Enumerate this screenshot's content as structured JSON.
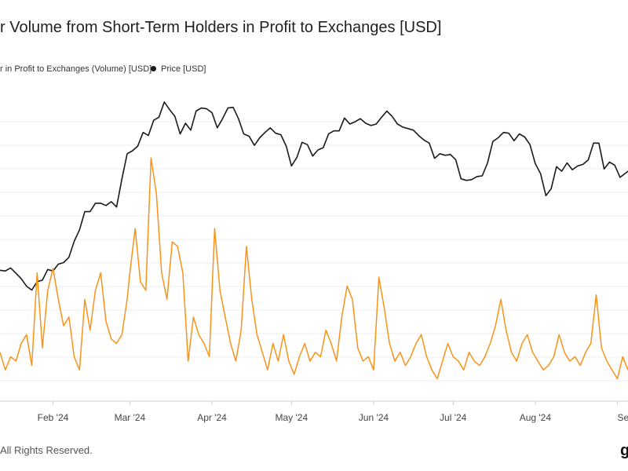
{
  "chart_data": {
    "type": "line",
    "title": "r Volume from Short-Term Holders in Profit to Exchanges [USD]",
    "legend": [
      {
        "name": "r in Profit to Exchanges (Volume) [USD]",
        "color": "#f7931a"
      },
      {
        "name": "Price [USD]",
        "color": "#1a1a1a"
      }
    ],
    "x_ticks": [
      "Feb '24",
      "Mar '24",
      "Apr '24",
      "May '24",
      "Jun '24",
      "Jul '24",
      "Aug '24",
      "Sep"
    ],
    "x_range": [
      "2024-01-12",
      "2024-09-05"
    ],
    "grid": "horizontal",
    "legend_position": "top-left",
    "series": [
      {
        "name": "Price [USD]",
        "color": "#1a1a1a",
        "points": [
          [
            "2024-01-12",
            295
          ],
          [
            "2024-01-14",
            294
          ],
          [
            "2024-01-16",
            298
          ],
          [
            "2024-01-18",
            291
          ],
          [
            "2024-01-20",
            284
          ],
          [
            "2024-01-22",
            274
          ],
          [
            "2024-01-24",
            269
          ],
          [
            "2024-01-26",
            280
          ],
          [
            "2024-01-28",
            282
          ],
          [
            "2024-01-30",
            296
          ],
          [
            "2024-02-01",
            294
          ],
          [
            "2024-02-03",
            303
          ],
          [
            "2024-02-05",
            305
          ],
          [
            "2024-02-07",
            312
          ],
          [
            "2024-02-09",
            333
          ],
          [
            "2024-02-11",
            348
          ],
          [
            "2024-02-13",
            372
          ],
          [
            "2024-02-15",
            372
          ],
          [
            "2024-02-17",
            383
          ],
          [
            "2024-02-19",
            383
          ],
          [
            "2024-02-21",
            380
          ],
          [
            "2024-02-23",
            385
          ],
          [
            "2024-02-25",
            378
          ],
          [
            "2024-02-27",
            415
          ],
          [
            "2024-02-29",
            448
          ],
          [
            "2024-03-02",
            452
          ],
          [
            "2024-03-04",
            458
          ],
          [
            "2024-03-06",
            476
          ],
          [
            "2024-03-08",
            472
          ],
          [
            "2024-03-10",
            492
          ],
          [
            "2024-03-12",
            496
          ],
          [
            "2024-03-14",
            516
          ],
          [
            "2024-03-16",
            506
          ],
          [
            "2024-03-18",
            497
          ],
          [
            "2024-03-20",
            474
          ],
          [
            "2024-03-22",
            488
          ],
          [
            "2024-03-24",
            479
          ],
          [
            "2024-03-26",
            504
          ],
          [
            "2024-03-28",
            508
          ],
          [
            "2024-03-30",
            507
          ],
          [
            "2024-04-01",
            502
          ],
          [
            "2024-04-03",
            482
          ],
          [
            "2024-04-05",
            494
          ],
          [
            "2024-04-07",
            508
          ],
          [
            "2024-04-09",
            509
          ],
          [
            "2024-04-11",
            494
          ],
          [
            "2024-04-13",
            474
          ],
          [
            "2024-04-15",
            471
          ],
          [
            "2024-04-17",
            459
          ],
          [
            "2024-04-19",
            469
          ],
          [
            "2024-04-21",
            476
          ],
          [
            "2024-04-23",
            482
          ],
          [
            "2024-04-25",
            475
          ],
          [
            "2024-04-27",
            473
          ],
          [
            "2024-04-29",
            458
          ],
          [
            "2024-05-01",
            432
          ],
          [
            "2024-05-03",
            443
          ],
          [
            "2024-05-05",
            463
          ],
          [
            "2024-05-07",
            460
          ],
          [
            "2024-05-09",
            445
          ],
          [
            "2024-05-11",
            453
          ],
          [
            "2024-05-13",
            456
          ],
          [
            "2024-05-15",
            474
          ],
          [
            "2024-05-17",
            478
          ],
          [
            "2024-05-19",
            478
          ],
          [
            "2024-05-21",
            495
          ],
          [
            "2024-05-23",
            487
          ],
          [
            "2024-05-25",
            490
          ],
          [
            "2024-05-27",
            494
          ],
          [
            "2024-05-29",
            488
          ],
          [
            "2024-05-31",
            485
          ],
          [
            "2024-06-02",
            487
          ],
          [
            "2024-06-04",
            496
          ],
          [
            "2024-06-06",
            504
          ],
          [
            "2024-06-08",
            497
          ],
          [
            "2024-06-10",
            487
          ],
          [
            "2024-06-12",
            483
          ],
          [
            "2024-06-14",
            481
          ],
          [
            "2024-06-16",
            479
          ],
          [
            "2024-06-18",
            472
          ],
          [
            "2024-06-20",
            466
          ],
          [
            "2024-06-22",
            462
          ],
          [
            "2024-06-24",
            442
          ],
          [
            "2024-06-26",
            448
          ],
          [
            "2024-06-28",
            446
          ],
          [
            "2024-06-30",
            447
          ],
          [
            "2024-07-02",
            440
          ],
          [
            "2024-07-04",
            415
          ],
          [
            "2024-07-06",
            413
          ],
          [
            "2024-07-08",
            414
          ],
          [
            "2024-07-10",
            418
          ],
          [
            "2024-07-12",
            419
          ],
          [
            "2024-07-14",
            436
          ],
          [
            "2024-07-16",
            464
          ],
          [
            "2024-07-18",
            469
          ],
          [
            "2024-07-20",
            476
          ],
          [
            "2024-07-22",
            475
          ],
          [
            "2024-07-24",
            465
          ],
          [
            "2024-07-26",
            474
          ],
          [
            "2024-07-28",
            470
          ],
          [
            "2024-07-30",
            460
          ],
          [
            "2024-08-01",
            435
          ],
          [
            "2024-08-03",
            422
          ],
          [
            "2024-08-05",
            393
          ],
          [
            "2024-08-07",
            402
          ],
          [
            "2024-08-09",
            431
          ],
          [
            "2024-08-11",
            425
          ],
          [
            "2024-08-13",
            436
          ],
          [
            "2024-08-15",
            427
          ],
          [
            "2024-08-17",
            432
          ],
          [
            "2024-08-19",
            434
          ],
          [
            "2024-08-21",
            440
          ],
          [
            "2024-08-23",
            462
          ],
          [
            "2024-08-25",
            462
          ],
          [
            "2024-08-27",
            428
          ],
          [
            "2024-08-29",
            437
          ],
          [
            "2024-08-31",
            433
          ],
          [
            "2024-09-02",
            417
          ],
          [
            "2024-09-05",
            425
          ]
        ]
      },
      {
        "name": "r in Profit to Exchanges (Volume) [USD]",
        "color": "#f7931a",
        "points": [
          [
            "2024-01-12",
            10
          ],
          [
            "2024-01-14",
            6
          ],
          [
            "2024-01-16",
            9
          ],
          [
            "2024-01-18",
            8
          ],
          [
            "2024-01-20",
            12
          ],
          [
            "2024-01-22",
            14
          ],
          [
            "2024-01-24",
            7
          ],
          [
            "2024-01-26",
            28
          ],
          [
            "2024-01-28",
            11
          ],
          [
            "2024-01-30",
            24
          ],
          [
            "2024-02-01",
            29
          ],
          [
            "2024-02-03",
            22
          ],
          [
            "2024-02-05",
            16
          ],
          [
            "2024-02-07",
            18
          ],
          [
            "2024-02-09",
            9
          ],
          [
            "2024-02-11",
            6
          ],
          [
            "2024-02-13",
            22
          ],
          [
            "2024-02-15",
            15
          ],
          [
            "2024-02-17",
            24
          ],
          [
            "2024-02-19",
            28
          ],
          [
            "2024-02-21",
            17
          ],
          [
            "2024-02-23",
            13
          ],
          [
            "2024-02-25",
            12
          ],
          [
            "2024-02-27",
            14
          ],
          [
            "2024-02-29",
            22
          ],
          [
            "2024-03-01",
            28
          ],
          [
            "2024-03-03",
            38
          ],
          [
            "2024-03-05",
            26
          ],
          [
            "2024-03-07",
            24
          ],
          [
            "2024-03-09",
            54
          ],
          [
            "2024-03-11",
            46
          ],
          [
            "2024-03-13",
            28
          ],
          [
            "2024-03-15",
            22
          ],
          [
            "2024-03-17",
            35
          ],
          [
            "2024-03-19",
            34
          ],
          [
            "2024-03-21",
            28
          ],
          [
            "2024-03-23",
            8
          ],
          [
            "2024-03-25",
            18
          ],
          [
            "2024-03-27",
            14
          ],
          [
            "2024-03-29",
            12
          ],
          [
            "2024-03-31",
            9
          ],
          [
            "2024-04-02",
            38
          ],
          [
            "2024-04-04",
            24
          ],
          [
            "2024-04-06",
            18
          ],
          [
            "2024-04-08",
            12
          ],
          [
            "2024-04-10",
            8
          ],
          [
            "2024-04-12",
            15
          ],
          [
            "2024-04-14",
            34
          ],
          [
            "2024-04-16",
            22
          ],
          [
            "2024-04-18",
            14
          ],
          [
            "2024-04-20",
            10
          ],
          [
            "2024-04-22",
            6
          ],
          [
            "2024-04-24",
            12
          ],
          [
            "2024-04-26",
            8
          ],
          [
            "2024-04-28",
            14
          ],
          [
            "2024-04-30",
            8
          ],
          [
            "2024-05-02",
            5
          ],
          [
            "2024-05-04",
            9
          ],
          [
            "2024-05-06",
            12
          ],
          [
            "2024-05-08",
            8
          ],
          [
            "2024-05-10",
            10
          ],
          [
            "2024-05-12",
            9
          ],
          [
            "2024-05-14",
            15
          ],
          [
            "2024-05-16",
            12
          ],
          [
            "2024-05-18",
            8
          ],
          [
            "2024-05-20",
            18
          ],
          [
            "2024-05-22",
            25
          ],
          [
            "2024-05-24",
            22
          ],
          [
            "2024-05-26",
            11
          ],
          [
            "2024-05-28",
            8
          ],
          [
            "2024-05-30",
            9
          ],
          [
            "2024-06-01",
            6
          ],
          [
            "2024-06-03",
            27
          ],
          [
            "2024-06-05",
            20
          ],
          [
            "2024-06-07",
            12
          ],
          [
            "2024-06-09",
            8
          ],
          [
            "2024-06-11",
            10
          ],
          [
            "2024-06-13",
            7
          ],
          [
            "2024-06-15",
            9
          ],
          [
            "2024-06-17",
            12
          ],
          [
            "2024-06-19",
            14
          ],
          [
            "2024-06-21",
            9
          ],
          [
            "2024-06-23",
            6
          ],
          [
            "2024-06-25",
            4
          ],
          [
            "2024-06-27",
            8
          ],
          [
            "2024-06-29",
            12
          ],
          [
            "2024-07-01",
            9
          ],
          [
            "2024-07-03",
            8
          ],
          [
            "2024-07-05",
            6
          ],
          [
            "2024-07-07",
            10
          ],
          [
            "2024-07-09",
            8
          ],
          [
            "2024-07-11",
            7
          ],
          [
            "2024-07-13",
            9
          ],
          [
            "2024-07-15",
            12
          ],
          [
            "2024-07-17",
            16
          ],
          [
            "2024-07-19",
            22
          ],
          [
            "2024-07-21",
            15
          ],
          [
            "2024-07-23",
            10
          ],
          [
            "2024-07-25",
            8
          ],
          [
            "2024-07-27",
            12
          ],
          [
            "2024-07-29",
            14
          ],
          [
            "2024-07-31",
            10
          ],
          [
            "2024-08-02",
            8
          ],
          [
            "2024-08-04",
            6
          ],
          [
            "2024-08-06",
            7
          ],
          [
            "2024-08-08",
            9
          ],
          [
            "2024-08-10",
            14
          ],
          [
            "2024-08-12",
            10
          ],
          [
            "2024-08-14",
            8
          ],
          [
            "2024-08-16",
            9
          ],
          [
            "2024-08-18",
            7
          ],
          [
            "2024-08-20",
            10
          ],
          [
            "2024-08-22",
            12
          ],
          [
            "2024-08-24",
            23
          ],
          [
            "2024-08-26",
            11
          ],
          [
            "2024-08-28",
            8
          ],
          [
            "2024-08-30",
            6
          ],
          [
            "2024-09-01",
            4
          ],
          [
            "2024-09-03",
            9
          ],
          [
            "2024-09-05",
            6
          ]
        ]
      }
    ]
  },
  "footer": {
    "copyright": "All Rights Reserved.",
    "logo_text": "g"
  }
}
